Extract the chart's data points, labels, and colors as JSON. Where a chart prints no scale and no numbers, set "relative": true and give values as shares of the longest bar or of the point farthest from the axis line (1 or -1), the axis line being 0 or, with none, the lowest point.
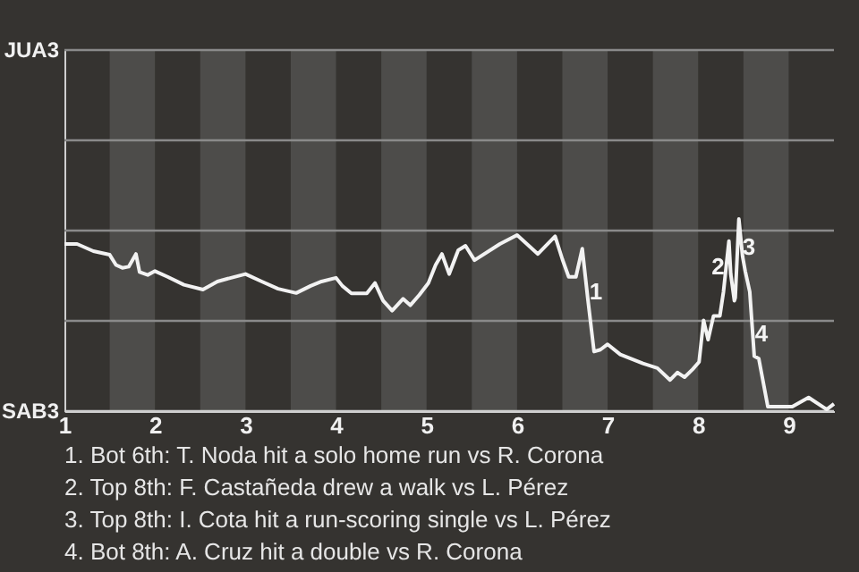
{
  "chart_data": {
    "type": "line",
    "relative": true,
    "x": [
      1.0,
      1.14,
      1.32,
      1.5,
      1.57,
      1.64,
      1.71,
      1.79,
      1.83,
      1.92,
      2.0,
      2.14,
      2.32,
      2.53,
      2.69,
      2.84,
      3.0,
      3.18,
      3.36,
      3.56,
      3.72,
      3.84,
      4.0,
      4.07,
      4.17,
      4.34,
      4.43,
      4.52,
      4.62,
      4.74,
      4.82,
      4.92,
      5.02,
      5.1,
      5.17,
      5.25,
      5.35,
      5.43,
      5.53,
      5.81,
      6.0,
      6.23,
      6.42,
      6.5,
      6.57,
      6.65,
      6.72,
      6.78,
      6.85,
      6.92,
      7.0,
      7.14,
      7.39,
      7.55,
      7.69,
      7.77,
      7.85,
      7.94,
      8.01,
      8.06,
      8.11,
      8.17,
      8.24,
      8.28,
      8.34,
      8.36,
      8.4,
      8.41,
      8.45,
      8.49,
      8.52,
      8.57,
      8.62,
      8.67,
      8.77,
      9.04,
      9.22,
      9.42,
      9.5
    ],
    "series": [
      {
        "color": "#f2f2f2",
        "values": [
          0.87,
          0.87,
          0.833,
          0.814,
          0.761,
          0.746,
          0.752,
          0.818,
          0.724,
          0.709,
          0.729,
          0.699,
          0.658,
          0.633,
          0.675,
          0.694,
          0.714,
          0.675,
          0.637,
          0.615,
          0.652,
          0.675,
          0.694,
          0.652,
          0.613,
          0.613,
          0.667,
          0.575,
          0.523,
          0.585,
          0.551,
          0.605,
          0.667,
          0.761,
          0.818,
          0.714,
          0.838,
          0.861,
          0.786,
          0.87,
          0.917,
          0.818,
          0.91,
          0.791,
          0.699,
          0.699,
          0.846,
          0.59,
          0.31,
          0.32,
          0.348,
          0.295,
          0.248,
          0.224,
          0.162,
          0.201,
          0.177,
          0.218,
          0.256,
          0.472,
          0.372,
          0.496,
          0.496,
          0.622,
          0.885,
          0.714,
          0.575,
          0.59,
          1,
          0.808,
          0.729,
          0.622,
          0.286,
          0.273,
          0.023,
          0.023,
          0.071,
          0.009,
          0.038
        ]
      }
    ],
    "xlim": [
      1,
      9.5
    ],
    "xticks": [
      1,
      2,
      3,
      4,
      5,
      6,
      7,
      8,
      9
    ],
    "marker": "none",
    "line_style": "solid",
    "ref_lines": [
      {
        "axis": "y",
        "value": 0,
        "label": "SAB3",
        "color": "#cfcfcf"
      },
      {
        "axis": "y",
        "value": 0.47,
        "label": null,
        "color": "#8a8a8a"
      },
      {
        "axis": "y",
        "value": 0.94,
        "label": null,
        "color": "#8a8a8a"
      },
      {
        "axis": "y",
        "value": 1.41,
        "label": null,
        "color": "#8a8a8a"
      },
      {
        "axis": "y",
        "value": 1.88,
        "label": "JUA3",
        "color": "#8a8a8a"
      }
    ],
    "bands": [
      {
        "axis": "x",
        "from": 1.5,
        "to": 2,
        "color": "#4d4c4a"
      },
      {
        "axis": "x",
        "from": 2.5,
        "to": 3,
        "color": "#4d4c4a"
      },
      {
        "axis": "x",
        "from": 3.5,
        "to": 4,
        "color": "#4d4c4a"
      },
      {
        "axis": "x",
        "from": 4.5,
        "to": 5,
        "color": "#4d4c4a"
      },
      {
        "axis": "x",
        "from": 5.5,
        "to": 6,
        "color": "#4d4c4a"
      },
      {
        "axis": "x",
        "from": 6.5,
        "to": 7,
        "color": "#4d4c4a"
      },
      {
        "axis": "x",
        "from": 7.5,
        "to": 8,
        "color": "#4d4c4a"
      },
      {
        "axis": "x",
        "from": 8.5,
        "to": 9,
        "color": "#4d4c4a"
      }
    ],
    "annotations": [
      {
        "text": "1",
        "x": 6.87,
        "y": 0.62
      },
      {
        "text": "2",
        "x": 8.22,
        "y": 0.75
      },
      {
        "text": "3",
        "x": 8.56,
        "y": 0.85
      },
      {
        "text": "4",
        "x": 8.7,
        "y": 0.4
      },
      "1. Bot 6th: T. Noda hit a solo home run vs R. Corona",
      "2. Top 8th: F. Castañeda drew a walk vs L. Pérez",
      "3. Top 8th: I. Cota hit a run-scoring single vs L. Pérez",
      "4. Bot 8th: A. Cruz hit a double vs R. Corona"
    ]
  }
}
